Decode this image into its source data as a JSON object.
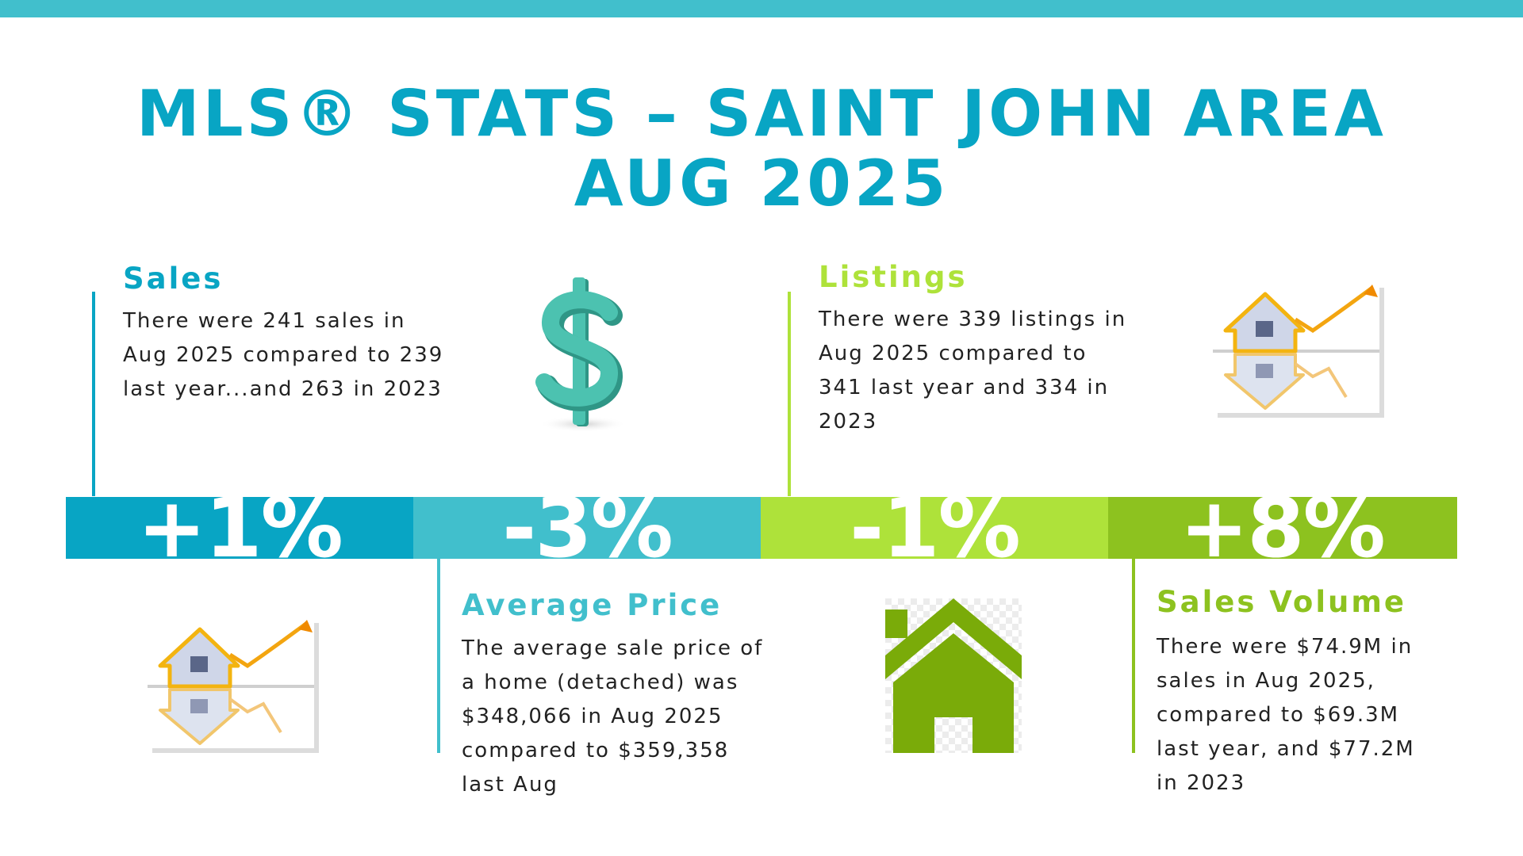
{
  "title": {
    "line1": "MLS® STATS – SAINT JOHN AREA",
    "line2": "AUG 2025"
  },
  "sections": {
    "sales": {
      "heading": "Sales",
      "text": "There were 241 sales in Aug 2025 compared to 239 last year...and 263 in 2023"
    },
    "listings": {
      "heading": "Listings",
      "text": "There were 339 listings in Aug 2025 compared to 341 last year and 334 in 2023"
    },
    "average_price": {
      "heading": "Average Price",
      "text": "The average sale price of a home (detached) was $348,066 in Aug 2025 compared to $359,358 last Aug"
    },
    "sales_volume": {
      "heading": "Sales Volume",
      "text": "There were $74.9M in sales in Aug 2025, compared to $69.3M last year, and $77.2M in 2023"
    }
  },
  "percentages": [
    {
      "label": "+1%",
      "color": "#08a5c4"
    },
    {
      "label": "-3%",
      "color": "#41bfcc"
    },
    {
      "label": "-1%",
      "color": "#aee23a"
    },
    {
      "label": "+8%",
      "color": "#8dc21f"
    }
  ],
  "colors": {
    "teal_dark": "#08a5c4",
    "teal_light": "#41bfcc",
    "green_light": "#aee23a",
    "green_dark": "#8dc21f",
    "house_green": "#7aab09",
    "dollar_teal": "#4cc2b0"
  },
  "icons": {
    "sales": "dollar-sign-icon",
    "listings": "house-growth-chart-icon",
    "bottom_left": "house-growth-chart-icon",
    "bottom_mid": "home-icon"
  }
}
